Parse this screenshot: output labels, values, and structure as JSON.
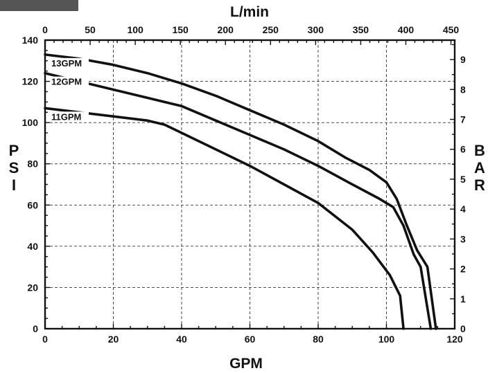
{
  "chart_data": {
    "type": "line",
    "x_label": "GPM",
    "x2_label": "L/min",
    "y_label": "P S I",
    "y2_label": "B A R",
    "x_range": [
      0,
      120
    ],
    "x_ticks": [
      0,
      20,
      40,
      60,
      80,
      100,
      120
    ],
    "x2_range": [
      0,
      454.2
    ],
    "x2_ticks": [
      0,
      50,
      100,
      150,
      200,
      250,
      300,
      350,
      400,
      450
    ],
    "y_range": [
      0,
      140
    ],
    "y_ticks": [
      0,
      20,
      40,
      60,
      80,
      100,
      120,
      140
    ],
    "y2_range": [
      0,
      9.65
    ],
    "y2_ticks": [
      0,
      1,
      2,
      3,
      4,
      5,
      6,
      7,
      8,
      9
    ],
    "grid": true,
    "series": [
      {
        "name": "13GPM",
        "points": [
          [
            0,
            133
          ],
          [
            10,
            131
          ],
          [
            20,
            128
          ],
          [
            30,
            124
          ],
          [
            40,
            119
          ],
          [
            50,
            113
          ],
          [
            60,
            106
          ],
          [
            70,
            99
          ],
          [
            80,
            91
          ],
          [
            88,
            83
          ],
          [
            95,
            77
          ],
          [
            100,
            71
          ],
          [
            103,
            63
          ],
          [
            106,
            50
          ],
          [
            109,
            38
          ],
          [
            112,
            30
          ],
          [
            114.5,
            0
          ]
        ]
      },
      {
        "name": "12GPM",
        "points": [
          [
            0,
            124
          ],
          [
            10,
            120
          ],
          [
            20,
            116
          ],
          [
            30,
            112
          ],
          [
            40,
            108
          ],
          [
            50,
            101
          ],
          [
            60,
            94
          ],
          [
            70,
            87
          ],
          [
            80,
            79
          ],
          [
            90,
            70
          ],
          [
            98,
            63
          ],
          [
            102,
            59
          ],
          [
            105,
            50
          ],
          [
            108,
            36
          ],
          [
            110,
            30
          ],
          [
            113,
            0
          ]
        ]
      },
      {
        "name": "11GPM",
        "points": [
          [
            0,
            107
          ],
          [
            10,
            105
          ],
          [
            20,
            103
          ],
          [
            30,
            101
          ],
          [
            35,
            99
          ],
          [
            40,
            95
          ],
          [
            50,
            87
          ],
          [
            60,
            79
          ],
          [
            70,
            70
          ],
          [
            80,
            61
          ],
          [
            90,
            48
          ],
          [
            96,
            37
          ],
          [
            101,
            26
          ],
          [
            104,
            16
          ],
          [
            105,
            0
          ]
        ]
      }
    ]
  }
}
